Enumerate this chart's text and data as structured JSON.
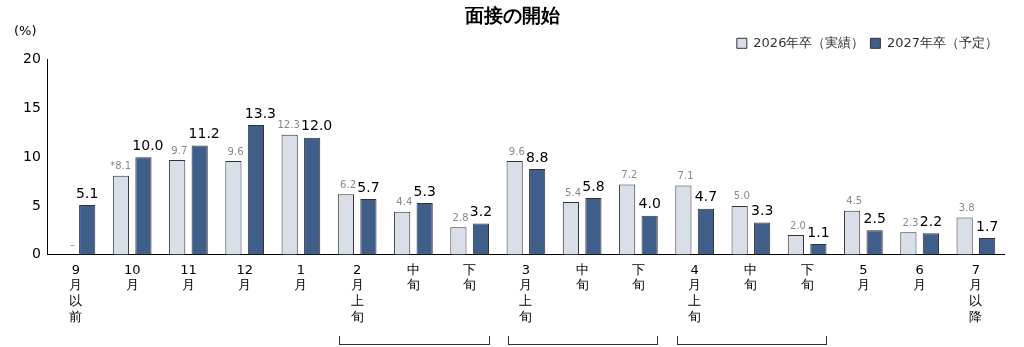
{
  "chart_data": {
    "type": "bar",
    "title": "面接の開始",
    "ylabel": "(%)",
    "categories": [
      "9月以前",
      "10月",
      "11月",
      "12月",
      "1月",
      "2月上旬",
      "中旬",
      "下旬",
      "3月上旬",
      "中旬",
      "下旬",
      "4月上旬",
      "中旬",
      "下旬",
      "5月",
      "6月",
      "7月以降"
    ],
    "series": [
      {
        "name": "2026年卒（実績）",
        "color": "#d9dfe8",
        "values": [
          null,
          8.1,
          9.7,
          9.6,
          12.3,
          6.2,
          4.4,
          2.8,
          9.6,
          5.4,
          7.2,
          7.1,
          5.0,
          2.0,
          4.5,
          2.3,
          3.8
        ],
        "value_labels": [
          "–",
          "*8.1",
          "9.7",
          "9.6",
          "12.3",
          "6.2",
          "4.4",
          "2.8",
          "9.6",
          "5.4",
          "7.2",
          "7.1",
          "5.0",
          "2.0",
          "4.5",
          "2.3",
          "3.8"
        ]
      },
      {
        "name": "2027年卒（予定）",
        "color": "#3f5f8a",
        "values": [
          5.1,
          10.0,
          11.2,
          13.3,
          12.0,
          5.7,
          5.3,
          3.2,
          8.8,
          5.8,
          4.0,
          4.7,
          3.3,
          1.1,
          2.5,
          2.2,
          1.7
        ],
        "value_labels": [
          "5.1",
          "10.0",
          "11.2",
          "13.3",
          "12.0",
          "5.7",
          "5.3",
          "3.2",
          "8.8",
          "5.8",
          "4.0",
          "4.7",
          "3.3",
          "1.1",
          "2.5",
          "2.2",
          "1.7"
        ]
      }
    ],
    "ylim": [
      0,
      20
    ],
    "yticks": [
      0,
      5,
      10,
      15,
      20
    ],
    "grid": false,
    "legend": "top right"
  }
}
